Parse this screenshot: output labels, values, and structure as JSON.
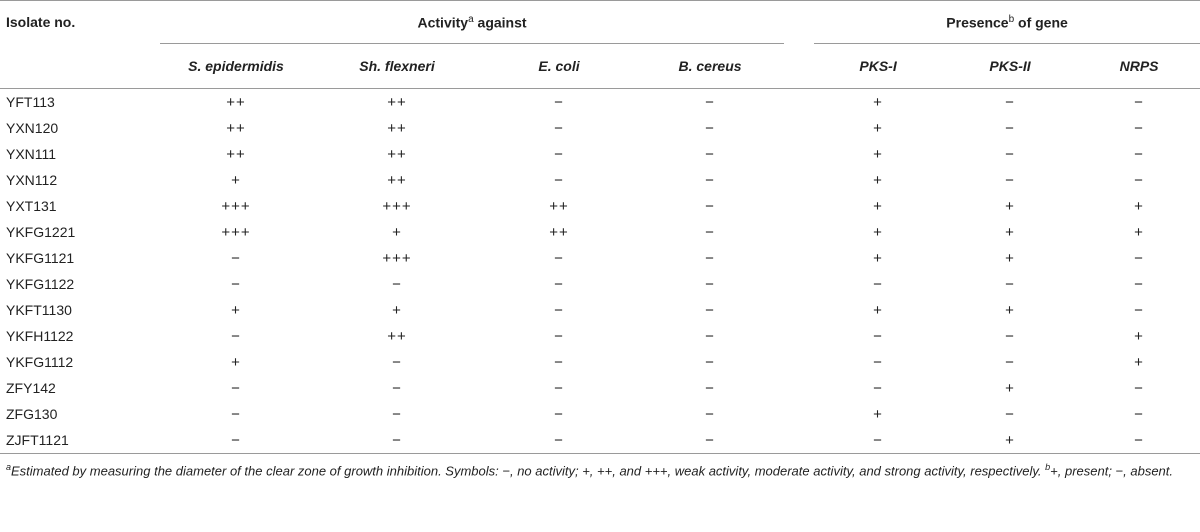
{
  "header": {
    "isolate_col": "Isolate no.",
    "activity_group": "Activity",
    "activity_sup": "a",
    "activity_suffix": " against",
    "gene_group": "Presence",
    "gene_sup": "b",
    "gene_suffix": " of gene",
    "activity_cols": [
      "S. epidermidis",
      "Sh. flexneri",
      "E. coli",
      "B. cereus"
    ],
    "gene_cols": [
      "PKS-I",
      "PKS-II",
      "NRPS"
    ]
  },
  "rows": [
    {
      "iso": "YFT113",
      "v": [
        "++",
        "++",
        "−",
        "−",
        "+",
        "−",
        "−"
      ]
    },
    {
      "iso": "YXN120",
      "v": [
        "++",
        "++",
        "−",
        "−",
        "+",
        "−",
        "−"
      ]
    },
    {
      "iso": "YXN111",
      "v": [
        "++",
        "++",
        "−",
        "−",
        "+",
        "−",
        "−"
      ]
    },
    {
      "iso": "YXN112",
      "v": [
        "+",
        "++",
        "−",
        "−",
        "+",
        "−",
        "−"
      ]
    },
    {
      "iso": "YXT131",
      "v": [
        "+++",
        "+++",
        "++",
        "−",
        "+",
        "+",
        "+"
      ]
    },
    {
      "iso": "YKFG1221",
      "v": [
        "+++",
        "+",
        "++",
        "−",
        "+",
        "+",
        "+"
      ]
    },
    {
      "iso": "YKFG1121",
      "v": [
        "−",
        "+++",
        "−",
        "−",
        "+",
        "+",
        "−"
      ]
    },
    {
      "iso": "YKFG1122",
      "v": [
        "−",
        "−",
        "−",
        "−",
        "−",
        "−",
        "−"
      ]
    },
    {
      "iso": "YKFT1130",
      "v": [
        "+",
        "+",
        "−",
        "−",
        "+",
        "+",
        "−"
      ]
    },
    {
      "iso": "YKFH1122",
      "v": [
        "−",
        "++",
        "−",
        "−",
        "−",
        "−",
        "+"
      ]
    },
    {
      "iso": "YKFG1112",
      "v": [
        "+",
        "−",
        "−",
        "−",
        "−",
        "−",
        "+"
      ]
    },
    {
      "iso": "ZFY142",
      "v": [
        "−",
        "−",
        "−",
        "−",
        "−",
        "+",
        "−"
      ]
    },
    {
      "iso": "ZFG130",
      "v": [
        "−",
        "−",
        "−",
        "−",
        "+",
        "−",
        "−"
      ]
    },
    {
      "iso": "ZJFT1121",
      "v": [
        "−",
        "−",
        "−",
        "−",
        "−",
        "+",
        "−"
      ]
    }
  ],
  "footnote": {
    "a_mark": "a",
    "a_text": "Estimated by measuring the diameter of the clear zone of growth inhibition. Symbols: −, no activity; +, ++, and +++, weak activity, moderate activity, and strong activity, respectively. ",
    "b_mark": "b",
    "b_text": "+, present; −, absent."
  }
}
